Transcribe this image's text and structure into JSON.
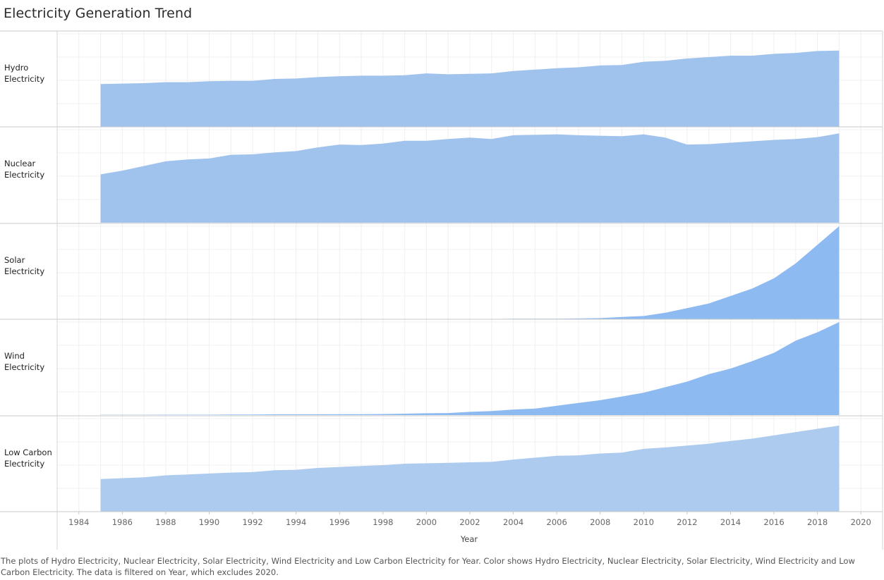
{
  "title": "Electricity Generation Trend",
  "caption": "The plots of Hydro Electricity, Nuclear Electricity, Solar Electricity, Wind Electricity and Low Carbon Electricity for Year.  Color shows Hydro Electricity, Nuclear Electricity, Solar Electricity, Wind Electricity and Low Carbon Electricity. The data is filtered on Year, which excludes 2020.",
  "chart_data": {
    "type": "area",
    "xlabel": "Year",
    "xlim": [
      1983,
      2021
    ],
    "xticks": [
      1984,
      1986,
      1988,
      1990,
      1992,
      1994,
      1996,
      1998,
      2000,
      2002,
      2004,
      2006,
      2008,
      2010,
      2012,
      2014,
      2016,
      2018,
      2020
    ],
    "grid": true,
    "x": [
      1985,
      1986,
      1987,
      1988,
      1989,
      1990,
      1991,
      1992,
      1993,
      1994,
      1995,
      1996,
      1997,
      1998,
      1999,
      2000,
      2001,
      2002,
      2003,
      2004,
      2005,
      2006,
      2007,
      2008,
      2009,
      2010,
      2011,
      2012,
      2013,
      2014,
      2015,
      2016,
      2017,
      2018,
      2019
    ],
    "series": [
      {
        "name": "Hydro Electricity",
        "color": "#a0c3ee",
        "ylim": [
          0,
          1.0
        ],
        "values": [
          0.46,
          0.465,
          0.47,
          0.48,
          0.48,
          0.49,
          0.495,
          0.495,
          0.515,
          0.52,
          0.535,
          0.545,
          0.55,
          0.55,
          0.555,
          0.575,
          0.565,
          0.57,
          0.575,
          0.6,
          0.615,
          0.63,
          0.64,
          0.66,
          0.665,
          0.7,
          0.71,
          0.735,
          0.75,
          0.765,
          0.765,
          0.785,
          0.795,
          0.815,
          0.82
        ]
      },
      {
        "name": "Nuclear Electricity",
        "color": "#a0c3ee",
        "ylim": [
          0,
          1.0
        ],
        "values": [
          0.52,
          0.56,
          0.61,
          0.66,
          0.68,
          0.69,
          0.73,
          0.735,
          0.755,
          0.77,
          0.81,
          0.84,
          0.835,
          0.85,
          0.88,
          0.88,
          0.9,
          0.915,
          0.9,
          0.94,
          0.945,
          0.95,
          0.94,
          0.935,
          0.93,
          0.95,
          0.915,
          0.84,
          0.845,
          0.86,
          0.875,
          0.89,
          0.9,
          0.92,
          0.96
        ]
      },
      {
        "name": "Solar Electricity",
        "color": "#8dbbf1",
        "ylim": [
          0,
          1.0
        ],
        "values": [
          0.002,
          0.002,
          0.002,
          0.002,
          0.002,
          0.002,
          0.002,
          0.002,
          0.002,
          0.002,
          0.002,
          0.002,
          0.002,
          0.002,
          0.002,
          0.002,
          0.002,
          0.002,
          0.003,
          0.005,
          0.006,
          0.006,
          0.008,
          0.012,
          0.025,
          0.035,
          0.07,
          0.12,
          0.17,
          0.25,
          0.33,
          0.44,
          0.6,
          0.8,
          1.0
        ]
      },
      {
        "name": "Wind Electricity",
        "color": "#8dbbf1",
        "ylim": [
          0,
          1.0
        ],
        "values": [
          0.003,
          0.003,
          0.003,
          0.004,
          0.004,
          0.004,
          0.005,
          0.005,
          0.008,
          0.008,
          0.008,
          0.009,
          0.01,
          0.011,
          0.015,
          0.02,
          0.022,
          0.035,
          0.043,
          0.06,
          0.07,
          0.1,
          0.13,
          0.16,
          0.2,
          0.24,
          0.3,
          0.36,
          0.44,
          0.5,
          0.58,
          0.67,
          0.8,
          0.89,
          1.0
        ]
      },
      {
        "name": "Low Carbon Electricity",
        "color": "#adcbef",
        "ylim": [
          0,
          1.0
        ],
        "values": [
          0.35,
          0.36,
          0.37,
          0.39,
          0.4,
          0.41,
          0.42,
          0.425,
          0.445,
          0.45,
          0.47,
          0.48,
          0.49,
          0.5,
          0.515,
          0.52,
          0.525,
          0.53,
          0.535,
          0.56,
          0.58,
          0.6,
          0.605,
          0.625,
          0.635,
          0.675,
          0.69,
          0.71,
          0.73,
          0.76,
          0.785,
          0.82,
          0.855,
          0.89,
          0.925
        ]
      }
    ],
    "row_labels": [
      [
        "Hydro",
        "Electricity"
      ],
      [
        "Nuclear",
        "Electricity"
      ],
      [
        "Solar",
        "Electricity"
      ],
      [
        "Wind",
        "Electricity"
      ],
      [
        "Low Carbon",
        "Electricity"
      ]
    ]
  }
}
